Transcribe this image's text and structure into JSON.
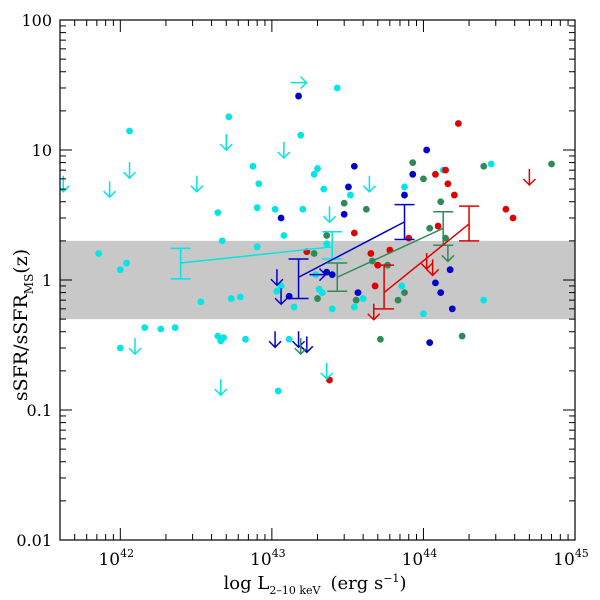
{
  "chart_data": {
    "type": "scatter",
    "title": "",
    "xlabel": "log L",
    "xlabel_sub": "2–10 keV",
    "xlabel_units": "(erg s",
    "xlabel_units_sup": "−1",
    "xlabel_units_close": ")",
    "ylabel": "sSFR/sSFR",
    "ylabel_sub": "MS",
    "ylabel_tail": "(z)",
    "xscale": "log",
    "yscale": "log",
    "xlim": [
      4e+41,
      1e+45
    ],
    "ylim": [
      0.01,
      100
    ],
    "x_ticks": [
      {
        "base": "10",
        "exp": "42",
        "value": 1e+42
      },
      {
        "base": "10",
        "exp": "43",
        "value": 1e+43
      },
      {
        "base": "10",
        "exp": "44",
        "value": 1e+44
      },
      {
        "base": "10",
        "exp": "45",
        "value": 1e+45
      }
    ],
    "y_ticks": [
      {
        "label": "0.01",
        "value": 0.01
      },
      {
        "label": "0.1",
        "value": 0.1
      },
      {
        "label": "1",
        "value": 1
      },
      {
        "label": "10",
        "value": 10
      },
      {
        "label": "100",
        "value": 100
      }
    ],
    "band": {
      "ymin": 0.5,
      "ymax": 2.0,
      "color": "#c8c8c8"
    },
    "colors": {
      "cyan": "#00e5e5",
      "blue": "#0000cc",
      "green": "#2e8b57",
      "red": "#e00000"
    },
    "series": [
      {
        "name": "cyan",
        "color_key": "cyan",
        "points": [
          [
            7.2e+41,
            1.6
          ],
          [
            1e+42,
            1.2
          ],
          [
            1.1e+42,
            1.35
          ],
          [
            1e+42,
            0.3
          ],
          [
            1.15e+42,
            14
          ],
          [
            1.45e+42,
            0.43
          ],
          [
            1.85e+42,
            0.42
          ],
          [
            2.3e+42,
            0.43
          ],
          [
            3.4e+42,
            0.68
          ],
          [
            4.4e+42,
            0.37
          ],
          [
            4.6e+42,
            0.34
          ],
          [
            4.4e+42,
            3.3
          ],
          [
            4.7e+42,
            2.0
          ],
          [
            4.8e+42,
            0.36
          ],
          [
            5.2e+42,
            18
          ],
          [
            5.4e+42,
            0.72
          ],
          [
            6.2e+42,
            0.74
          ],
          [
            6.7e+42,
            0.35
          ],
          [
            7.5e+42,
            7.5
          ],
          [
            8.2e+42,
            5.5
          ],
          [
            8e+42,
            1.8
          ],
          [
            1.08e+43,
            0.82
          ],
          [
            1.15e+43,
            0.9
          ],
          [
            1.2e+43,
            2.2
          ],
          [
            1.1e+43,
            0.14
          ],
          [
            1.4e+43,
            0.62
          ],
          [
            1.55e+43,
            13
          ],
          [
            1.9e+43,
            6.5
          ],
          [
            2e+43,
            7.2
          ],
          [
            2.05e+43,
            0.85
          ],
          [
            2.15e+43,
            0.8
          ],
          [
            2.2e+43,
            5.0
          ],
          [
            2.5e+43,
            0.6
          ],
          [
            2.7e+43,
            30
          ],
          [
            3.3e+43,
            4.5
          ],
          [
            3.5e+43,
            0.62
          ],
          [
            4e+43,
            0.72
          ],
          [
            1.95e+43,
            1.1
          ],
          [
            1.3e+43,
            0.35
          ],
          [
            1.05e+43,
            3.5
          ],
          [
            7.2e+43,
            0.9
          ],
          [
            1e+44,
            0.55
          ],
          [
            1.35e+44,
            7.0
          ],
          [
            2.5e+44,
            0.7
          ],
          [
            2.8e+44,
            7.8
          ],
          [
            8e+42,
            3.6
          ],
          [
            2.3e+43,
            1.9
          ],
          [
            1.6e+43,
            3.5
          ],
          [
            7.5e+43,
            5.2
          ]
        ]
      },
      {
        "name": "blue",
        "color_key": "blue",
        "points": [
          [
            1.3e+43,
            0.75
          ],
          [
            1.15e+43,
            3.0
          ],
          [
            1.5e+43,
            26
          ],
          [
            2.3e+43,
            1.15
          ],
          [
            2.5e+43,
            1.1
          ],
          [
            3e+43,
            3.2
          ],
          [
            3.2e+43,
            5.2
          ],
          [
            3.5e+43,
            7.5
          ],
          [
            3.7e+43,
            0.8
          ],
          [
            7.5e+43,
            4.5
          ],
          [
            8.5e+43,
            6.5
          ],
          [
            1.05e+44,
            10
          ],
          [
            1.1e+44,
            0.33
          ],
          [
            1.2e+44,
            0.95
          ],
          [
            1.3e+44,
            0.8
          ],
          [
            1.5e+44,
            1.2
          ],
          [
            1.55e+44,
            0.6
          ]
        ]
      },
      {
        "name": "green",
        "color_key": "green",
        "points": [
          [
            1.9e+43,
            1.6
          ],
          [
            2e+43,
            0.72
          ],
          [
            2.3e+43,
            2.2
          ],
          [
            3e+43,
            3.9
          ],
          [
            3.6e+43,
            0.7
          ],
          [
            4.2e+43,
            3.5
          ],
          [
            4.6e+43,
            1.4
          ],
          [
            5.2e+43,
            0.35
          ],
          [
            5.8e+43,
            1.3
          ],
          [
            6.8e+43,
            0.7
          ],
          [
            7.5e+43,
            0.8
          ],
          [
            8.5e+43,
            8.0
          ],
          [
            1e+44,
            6.0
          ],
          [
            1.1e+44,
            2.5
          ],
          [
            1.3e+44,
            4.0
          ],
          [
            1.4e+44,
            2.1
          ],
          [
            1.8e+44,
            0.37
          ],
          [
            2.5e+44,
            7.5
          ],
          [
            7e+44,
            7.8
          ]
        ]
      },
      {
        "name": "red",
        "color_key": "red",
        "points": [
          [
            1.7e+43,
            1.65
          ],
          [
            2.4e+43,
            0.17
          ],
          [
            3.5e+43,
            2.3
          ],
          [
            4.5e+43,
            1.6
          ],
          [
            4.8e+43,
            0.9
          ],
          [
            5e+43,
            1.3
          ],
          [
            6e+43,
            1.7
          ],
          [
            8e+43,
            2.1
          ],
          [
            1.2e+44,
            6.5
          ],
          [
            1.25e+44,
            2.6
          ],
          [
            1.4e+44,
            7.0
          ],
          [
            1.45e+44,
            5.5
          ],
          [
            1.6e+44,
            4.5
          ],
          [
            1.7e+44,
            16
          ],
          [
            3.5e+44,
            3.5
          ],
          [
            3.9e+44,
            3.0
          ]
        ]
      }
    ],
    "upper_limits": [
      {
        "color_key": "cyan",
        "x": 4.2e+41,
        "y": 5.5
      },
      {
        "color_key": "cyan",
        "x": 8.5e+41,
        "y": 5.0
      },
      {
        "color_key": "cyan",
        "x": 1.15e+42,
        "y": 7.0
      },
      {
        "color_key": "cyan",
        "x": 1.25e+42,
        "y": 0.31
      },
      {
        "color_key": "cyan",
        "x": 3.2e+42,
        "y": 5.5
      },
      {
        "color_key": "cyan",
        "x": 4.6e+42,
        "y": 0.15
      },
      {
        "color_key": "cyan",
        "x": 5e+42,
        "y": 11.5
      },
      {
        "color_key": "cyan",
        "x": 1.2e+43,
        "y": 10
      },
      {
        "color_key": "cyan",
        "x": 2.3e+43,
        "y": 0.2
      },
      {
        "color_key": "cyan",
        "x": 2.4e+43,
        "y": 3.2
      },
      {
        "color_key": "cyan",
        "x": 4.4e+43,
        "y": 5.5
      },
      {
        "color_key": "blue",
        "x": 1.05e+43,
        "y": 0.35
      },
      {
        "color_key": "blue",
        "x": 1.08e+43,
        "y": 1.05
      },
      {
        "color_key": "blue",
        "x": 1.15e+43,
        "y": 0.75
      },
      {
        "color_key": "blue",
        "x": 1.5e+43,
        "y": 0.35
      },
      {
        "color_key": "blue",
        "x": 1.7e+43,
        "y": 0.32
      },
      {
        "color_key": "green",
        "x": 1.55e+43,
        "y": 0.31
      },
      {
        "color_key": "green",
        "x": 1.45e+44,
        "y": 1.6
      },
      {
        "color_key": "red",
        "x": 4.7e+43,
        "y": 0.57
      },
      {
        "color_key": "red",
        "x": 1.05e+44,
        "y": 1.4
      },
      {
        "color_key": "red",
        "x": 1.15e+44,
        "y": 1.25
      },
      {
        "color_key": "red",
        "x": 5e+44,
        "y": 6.2
      }
    ],
    "lower_limits_x": [
      {
        "color_key": "cyan",
        "x": 1.5e+43,
        "y": 33
      },
      {
        "color_key": "blue",
        "x": 2e+43,
        "y": 1.1
      }
    ],
    "binned_means": [
      {
        "color_key": "cyan",
        "x": [
          2.5e+42,
          2.5e+43
        ],
        "y": [
          1.35,
          1.8
        ],
        "err_lo": [
          1.02,
          1.45
        ],
        "err_hi": [
          1.75,
          2.35
        ]
      },
      {
        "color_key": "blue",
        "x": [
          1.5e+43,
          7.5e+43
        ],
        "y": [
          1.05,
          2.8
        ],
        "err_lo": [
          0.72,
          2.05
        ],
        "err_hi": [
          1.45,
          3.8
        ]
      },
      {
        "color_key": "green",
        "x": [
          2.7e+43,
          1.35e+44
        ],
        "y": [
          1.05,
          2.5
        ],
        "err_lo": [
          0.82,
          1.85
        ],
        "err_hi": [
          1.35,
          3.35
        ]
      },
      {
        "color_key": "red",
        "x": [
          5.5e+43,
          2e+44
        ],
        "y": [
          0.8,
          2.7
        ],
        "err_lo": [
          0.6,
          2.0
        ],
        "err_hi": [
          1.3,
          3.7
        ]
      }
    ]
  }
}
